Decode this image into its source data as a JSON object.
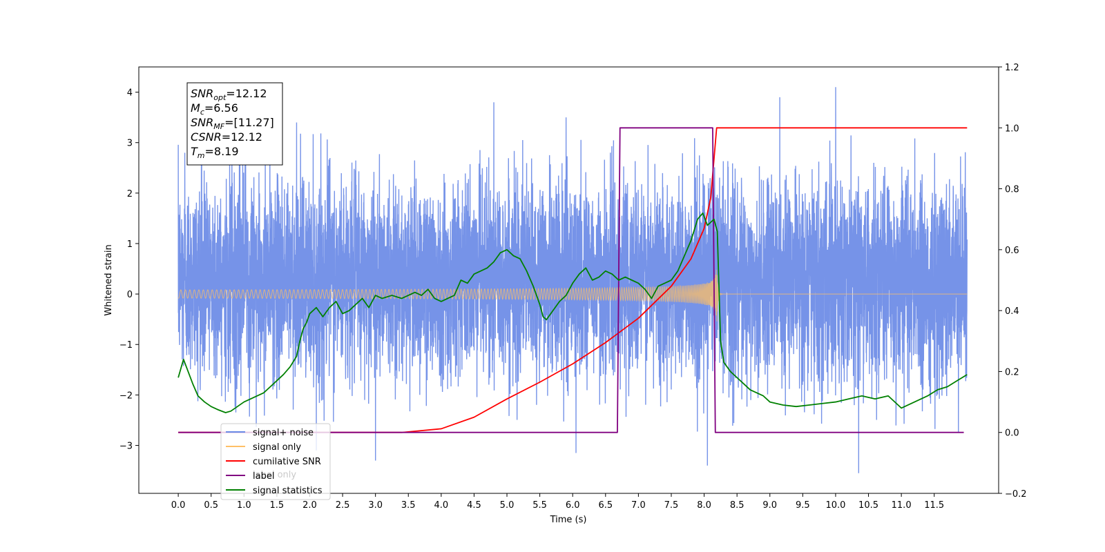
{
  "chart_data": {
    "type": "line",
    "title": "",
    "xlabel": "Time (s)",
    "ylabel": "Whitened strain",
    "y2label": "",
    "xlim": [
      -0.6,
      12.48
    ],
    "ylim": [
      -3.95,
      4.5
    ],
    "y2lim": [
      -0.2,
      1.2
    ],
    "grid": false,
    "x_ticks": [
      0.0,
      0.5,
      1.0,
      1.5,
      2.0,
      2.5,
      3.0,
      3.5,
      4.0,
      4.5,
      5.0,
      5.5,
      6.0,
      6.5,
      7.0,
      7.5,
      8.0,
      8.5,
      9.0,
      9.5,
      10.0,
      10.5,
      11.0,
      11.5
    ],
    "x_tick_labels": [
      "0.0",
      "0.5",
      "1.0",
      "1.5",
      "2.0",
      "2.5",
      "3.0",
      "3.5",
      "4.0",
      "4.5",
      "5.0",
      "5.5",
      "6.0",
      "6.5",
      "7.0",
      "7.5",
      "8.0",
      "8.5",
      "9.0",
      "9.5",
      "10.0",
      "10.5",
      "11.0",
      "11.5"
    ],
    "y_ticks": [
      -3,
      -2,
      -1,
      0,
      1,
      2,
      3,
      4
    ],
    "y_tick_labels": [
      "−3",
      "−2",
      "−1",
      "0",
      "1",
      "2",
      "3",
      "4"
    ],
    "y2_ticks": [
      -0.2,
      0.0,
      0.2,
      0.4,
      0.6,
      0.8,
      1.0,
      1.2
    ],
    "y2_tick_labels": [
      "−0.2",
      "0.0",
      "0.2",
      "0.4",
      "0.6",
      "0.8",
      "1.0",
      "1.2"
    ],
    "series": [
      {
        "name": "signal+ noise",
        "color": "#6a8ae6",
        "axis": "left",
        "kind": "noise",
        "x_range": [
          0.0,
          12.0
        ],
        "typical_band": [
          -2.2,
          2.8
        ],
        "spikes": [
          {
            "x": 0.1,
            "y": 2.8
          },
          {
            "x": 1.8,
            "y": 3.4
          },
          {
            "x": 4.8,
            "y": 3.8
          },
          {
            "x": 9.15,
            "y": 3.9
          },
          {
            "x": 10.0,
            "y": 4.1
          },
          {
            "x": 5.9,
            "y": 3.5
          },
          {
            "x": 3.0,
            "y": -3.3
          },
          {
            "x": 8.05,
            "y": -3.4
          },
          {
            "x": 10.35,
            "y": -3.55
          },
          {
            "x": 2.1,
            "y": -3.1
          },
          {
            "x": 6.05,
            "y": -3.15
          }
        ]
      },
      {
        "name": "signal only",
        "color": "#ffbf66",
        "axis": "left",
        "kind": "chirp",
        "start": 0.0,
        "end": 12.0,
        "merger": 8.19,
        "peak_amplitude": 0.75
      },
      {
        "name": "cumilative SNR",
        "color": "#ff0000",
        "axis": "right",
        "points": [
          [
            0.0,
            0.0
          ],
          [
            3.4,
            0.0
          ],
          [
            4.0,
            0.012
          ],
          [
            4.5,
            0.05
          ],
          [
            5.0,
            0.11
          ],
          [
            5.5,
            0.165
          ],
          [
            6.0,
            0.225
          ],
          [
            6.5,
            0.295
          ],
          [
            7.0,
            0.375
          ],
          [
            7.5,
            0.48
          ],
          [
            7.8,
            0.57
          ],
          [
            8.0,
            0.67
          ],
          [
            8.1,
            0.77
          ],
          [
            8.19,
            1.0
          ],
          [
            12.0,
            1.0
          ]
        ]
      },
      {
        "name": "label",
        "color": "#800080",
        "axis": "right",
        "points": [
          [
            0.0,
            0.0
          ],
          [
            6.68,
            0.0
          ],
          [
            6.72,
            1.0
          ],
          [
            8.13,
            1.0
          ],
          [
            8.17,
            0.0
          ],
          [
            11.95,
            0.0
          ]
        ]
      },
      {
        "name": "signal statistics",
        "color": "#008000",
        "axis": "right",
        "points": [
          [
            0.0,
            0.18
          ],
          [
            0.08,
            0.24
          ],
          [
            0.15,
            0.2
          ],
          [
            0.22,
            0.16
          ],
          [
            0.3,
            0.12
          ],
          [
            0.4,
            0.1
          ],
          [
            0.5,
            0.085
          ],
          [
            0.6,
            0.075
          ],
          [
            0.72,
            0.065
          ],
          [
            0.8,
            0.07
          ],
          [
            0.9,
            0.085
          ],
          [
            1.0,
            0.1
          ],
          [
            1.15,
            0.115
          ],
          [
            1.3,
            0.13
          ],
          [
            1.4,
            0.15
          ],
          [
            1.5,
            0.17
          ],
          [
            1.6,
            0.19
          ],
          [
            1.7,
            0.215
          ],
          [
            1.8,
            0.25
          ],
          [
            1.85,
            0.3
          ],
          [
            1.9,
            0.34
          ],
          [
            1.95,
            0.36
          ],
          [
            2.0,
            0.39
          ],
          [
            2.1,
            0.41
          ],
          [
            2.2,
            0.38
          ],
          [
            2.3,
            0.41
          ],
          [
            2.4,
            0.43
          ],
          [
            2.5,
            0.39
          ],
          [
            2.6,
            0.4
          ],
          [
            2.7,
            0.42
          ],
          [
            2.8,
            0.44
          ],
          [
            2.9,
            0.41
          ],
          [
            3.0,
            0.45
          ],
          [
            3.1,
            0.44
          ],
          [
            3.25,
            0.45
          ],
          [
            3.4,
            0.44
          ],
          [
            3.5,
            0.45
          ],
          [
            3.6,
            0.46
          ],
          [
            3.7,
            0.45
          ],
          [
            3.8,
            0.47
          ],
          [
            3.9,
            0.44
          ],
          [
            4.0,
            0.43
          ],
          [
            4.1,
            0.44
          ],
          [
            4.2,
            0.45
          ],
          [
            4.3,
            0.5
          ],
          [
            4.4,
            0.49
          ],
          [
            4.5,
            0.52
          ],
          [
            4.6,
            0.53
          ],
          [
            4.7,
            0.54
          ],
          [
            4.8,
            0.56
          ],
          [
            4.9,
            0.59
          ],
          [
            5.0,
            0.6
          ],
          [
            5.1,
            0.58
          ],
          [
            5.2,
            0.57
          ],
          [
            5.3,
            0.53
          ],
          [
            5.4,
            0.48
          ],
          [
            5.45,
            0.45
          ],
          [
            5.5,
            0.42
          ],
          [
            5.55,
            0.38
          ],
          [
            5.6,
            0.37
          ],
          [
            5.7,
            0.4
          ],
          [
            5.8,
            0.43
          ],
          [
            5.9,
            0.45
          ],
          [
            6.0,
            0.49
          ],
          [
            6.1,
            0.52
          ],
          [
            6.2,
            0.54
          ],
          [
            6.3,
            0.5
          ],
          [
            6.4,
            0.51
          ],
          [
            6.5,
            0.53
          ],
          [
            6.6,
            0.52
          ],
          [
            6.7,
            0.5
          ],
          [
            6.8,
            0.51
          ],
          [
            6.9,
            0.5
          ],
          [
            7.0,
            0.49
          ],
          [
            7.1,
            0.47
          ],
          [
            7.2,
            0.44
          ],
          [
            7.3,
            0.48
          ],
          [
            7.4,
            0.49
          ],
          [
            7.5,
            0.5
          ],
          [
            7.6,
            0.53
          ],
          [
            7.7,
            0.58
          ],
          [
            7.8,
            0.63
          ],
          [
            7.9,
            0.7
          ],
          [
            7.98,
            0.72
          ],
          [
            8.05,
            0.68
          ],
          [
            8.1,
            0.69
          ],
          [
            8.15,
            0.7
          ],
          [
            8.2,
            0.66
          ],
          [
            8.25,
            0.3
          ],
          [
            8.3,
            0.23
          ],
          [
            8.4,
            0.2
          ],
          [
            8.5,
            0.18
          ],
          [
            8.6,
            0.16
          ],
          [
            8.7,
            0.14
          ],
          [
            8.8,
            0.13
          ],
          [
            8.9,
            0.12
          ],
          [
            9.0,
            0.1
          ],
          [
            9.2,
            0.09
          ],
          [
            9.4,
            0.085
          ],
          [
            9.6,
            0.09
          ],
          [
            9.8,
            0.095
          ],
          [
            10.0,
            0.1
          ],
          [
            10.2,
            0.11
          ],
          [
            10.4,
            0.12
          ],
          [
            10.6,
            0.11
          ],
          [
            10.8,
            0.12
          ],
          [
            11.0,
            0.08
          ],
          [
            11.2,
            0.1
          ],
          [
            11.4,
            0.12
          ],
          [
            11.55,
            0.14
          ],
          [
            11.7,
            0.15
          ],
          [
            11.85,
            0.17
          ],
          [
            12.0,
            0.19
          ]
        ]
      }
    ],
    "legend": {
      "placement": "lower-left",
      "entries": [
        {
          "label": "signal+ noise",
          "color": "#6a8ae6"
        },
        {
          "label": "signal only",
          "color": "#ffbf66"
        },
        {
          "label": "cumilative SNR",
          "color": "#ff0000"
        },
        {
          "label": "label",
          "color": "#800080"
        },
        {
          "label": "signal statistics",
          "color": "#008000"
        }
      ],
      "occluded_text": "label only"
    },
    "info_box": {
      "placement": "top-left",
      "lines": [
        {
          "name": "SNR",
          "sub": "opt",
          "value": "=12.12"
        },
        {
          "name": "M",
          "sub": "c",
          "value": "=6.56"
        },
        {
          "name": "SNR",
          "sub": "MF",
          "value": "=[11.27]"
        },
        {
          "name": "CSNR",
          "sub": "",
          "value": "=12.12"
        },
        {
          "name": "T",
          "sub": "m",
          "value": "=8.19"
        }
      ]
    }
  }
}
